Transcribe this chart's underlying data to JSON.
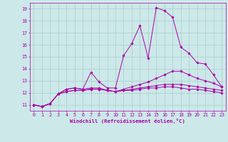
{
  "background_color": "#cce8e8",
  "grid_color": "#aacccc",
  "line_color": "#aa00aa",
  "xlabel": "Windchill (Refroidissement éolien,°C)",
  "ylabel_ticks": [
    11,
    12,
    13,
    14,
    15,
    16,
    17,
    18,
    19
  ],
  "xlabel_ticks": [
    0,
    1,
    2,
    3,
    4,
    5,
    6,
    7,
    8,
    9,
    10,
    11,
    12,
    13,
    14,
    15,
    16,
    17,
    18,
    19,
    20,
    21,
    22,
    23
  ],
  "xlim": [
    -0.5,
    23.5
  ],
  "ylim": [
    10.5,
    19.5
  ],
  "series": [
    [
      11.0,
      10.85,
      11.1,
      11.9,
      12.3,
      12.4,
      12.3,
      13.7,
      12.9,
      12.4,
      12.4,
      15.1,
      16.1,
      17.6,
      14.9,
      19.1,
      18.85,
      18.3,
      15.8,
      15.3,
      14.5,
      14.4,
      13.5,
      12.5
    ],
    [
      11.0,
      10.85,
      11.1,
      11.9,
      12.3,
      12.4,
      12.3,
      12.4,
      12.4,
      12.2,
      12.1,
      12.3,
      12.5,
      12.7,
      12.9,
      13.2,
      13.5,
      13.8,
      13.8,
      13.5,
      13.2,
      13.0,
      12.8,
      12.5
    ],
    [
      11.0,
      10.85,
      11.1,
      11.9,
      12.1,
      12.2,
      12.2,
      12.3,
      12.3,
      12.2,
      12.1,
      12.2,
      12.3,
      12.4,
      12.5,
      12.6,
      12.7,
      12.7,
      12.7,
      12.6,
      12.5,
      12.4,
      12.3,
      12.2
    ],
    [
      11.0,
      10.85,
      11.1,
      11.9,
      12.1,
      12.2,
      12.2,
      12.3,
      12.3,
      12.2,
      12.1,
      12.2,
      12.2,
      12.3,
      12.4,
      12.4,
      12.5,
      12.5,
      12.4,
      12.3,
      12.3,
      12.2,
      12.1,
      12.0
    ]
  ],
  "marker": "D",
  "markersize": 1.8,
  "linewidth": 0.7,
  "tick_fontsize": 4.8,
  "xlabel_fontsize": 5.2
}
